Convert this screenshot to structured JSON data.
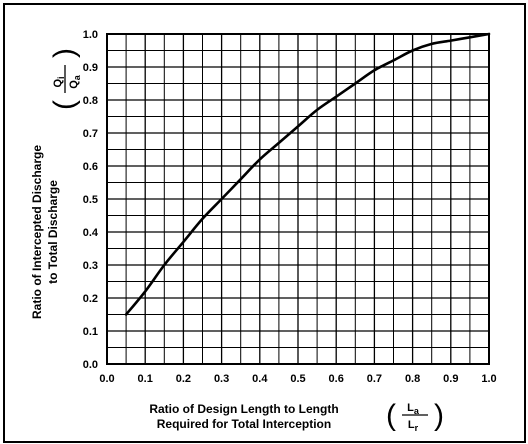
{
  "chart_data": {
    "type": "line",
    "xlabel_lines": [
      "Ratio of Design Length to Length",
      "Required for Total Interception"
    ],
    "ylabel_lines": [
      "Ratio of Intercepted Discharge",
      "to Total Discharge"
    ],
    "x_symbol": {
      "numerator": "L",
      "numerator_sub": "a",
      "denominator": "L",
      "denominator_sub": "r"
    },
    "y_symbol": {
      "numerator": "Q",
      "numerator_sub": "i",
      "denominator": "Q",
      "denominator_sub": "a"
    },
    "xlim": [
      0,
      1
    ],
    "ylim": [
      0,
      1
    ],
    "x_ticks": [
      "0.0",
      "0.1",
      "0.2",
      "0.3",
      "0.4",
      "0.5",
      "0.6",
      "0.7",
      "0.8",
      "0.9",
      "1.0"
    ],
    "y_ticks": [
      "0.0",
      "0.1",
      "0.2",
      "0.3",
      "0.4",
      "0.5",
      "0.6",
      "0.7",
      "0.8",
      "0.9",
      "1.0"
    ],
    "grid": true,
    "grid_minor_step": 0.05,
    "series": [
      {
        "x": [
          0.05,
          0.1,
          0.15,
          0.2,
          0.25,
          0.3,
          0.35,
          0.4,
          0.45,
          0.5,
          0.55,
          0.6,
          0.65,
          0.7,
          0.75,
          0.8,
          0.85,
          0.9,
          0.95,
          1.0
        ],
        "y": [
          0.15,
          0.22,
          0.3,
          0.37,
          0.44,
          0.5,
          0.56,
          0.62,
          0.67,
          0.72,
          0.77,
          0.81,
          0.85,
          0.89,
          0.92,
          0.95,
          0.97,
          0.98,
          0.99,
          1.0
        ]
      }
    ]
  }
}
